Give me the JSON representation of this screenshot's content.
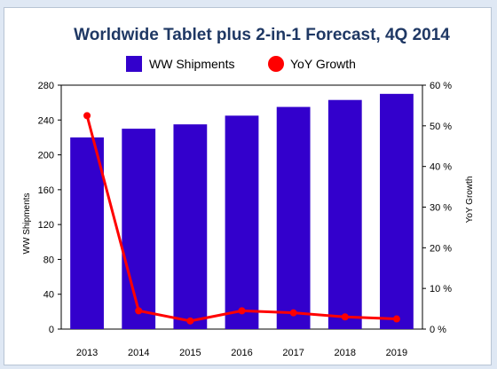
{
  "chart_data": {
    "type": "bar",
    "title": "Worldwide Tablet plus 2-in-1 Forecast, 4Q 2014",
    "categories": [
      "2013",
      "2014",
      "2015",
      "2016",
      "2017",
      "2018",
      "2019"
    ],
    "series": [
      {
        "name": "WW Shipments",
        "type": "bar",
        "axis": "left",
        "color": "#3300cc",
        "values": [
          220,
          230,
          235,
          245,
          255,
          263,
          270
        ]
      },
      {
        "name": "YoY Growth",
        "type": "line",
        "axis": "right",
        "color": "#ff0000",
        "values": [
          52.5,
          4.5,
          2.0,
          4.5,
          4.0,
          3.0,
          2.5
        ]
      }
    ],
    "ylabel": "WW Shipments",
    "ylim": [
      0,
      280
    ],
    "yticks": [
      "280",
      "240",
      "200",
      "160",
      "120",
      "80",
      "40",
      "0"
    ],
    "y2label": "YoY Growth",
    "y2lim": [
      0,
      60
    ],
    "y2ticks": [
      "60 %",
      "50 %",
      "40 %",
      "30 %",
      "20 %",
      "10 %",
      "0 %"
    ],
    "grid": false,
    "legend": "top"
  }
}
